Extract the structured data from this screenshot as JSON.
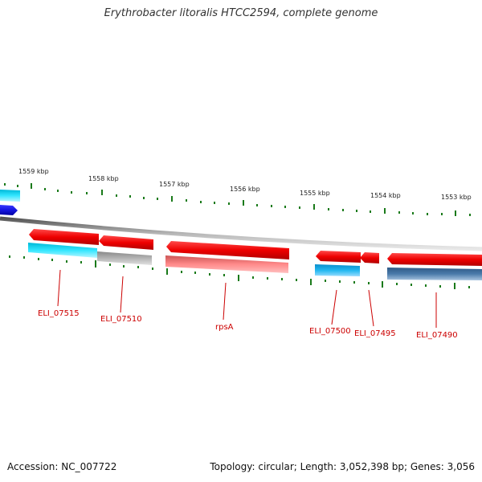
{
  "title": "Erythrobacter litoralis HTCC2594, complete genome",
  "footer": {
    "accession": "Accession: NC_007722",
    "summary": "Topology: circular; Length: 3,052,398 bp; Genes: 3,056"
  },
  "colors": {
    "cds_forward": "#ff1a1a",
    "cds_reverse_light": "#ff8888",
    "gene_cyan": "#33e6ff",
    "gene_blue": "#1515e0",
    "gene_grey": "#b0b0b0",
    "gene_steel": "#4a7aaa",
    "tick_green": "#1a7a1a",
    "label_red": "#cc0000"
  },
  "scale_labels": [
    "1559 kbp",
    "1558 kbp",
    "1557 kbp",
    "1556 kbp",
    "1555 kbp",
    "1554 kbp",
    "1553 kbp"
  ],
  "gene_labels": [
    "ELI_07515",
    "ELI_07510",
    "rpsA",
    "ELI_07500",
    "ELI_07495",
    "ELI_07490"
  ]
}
